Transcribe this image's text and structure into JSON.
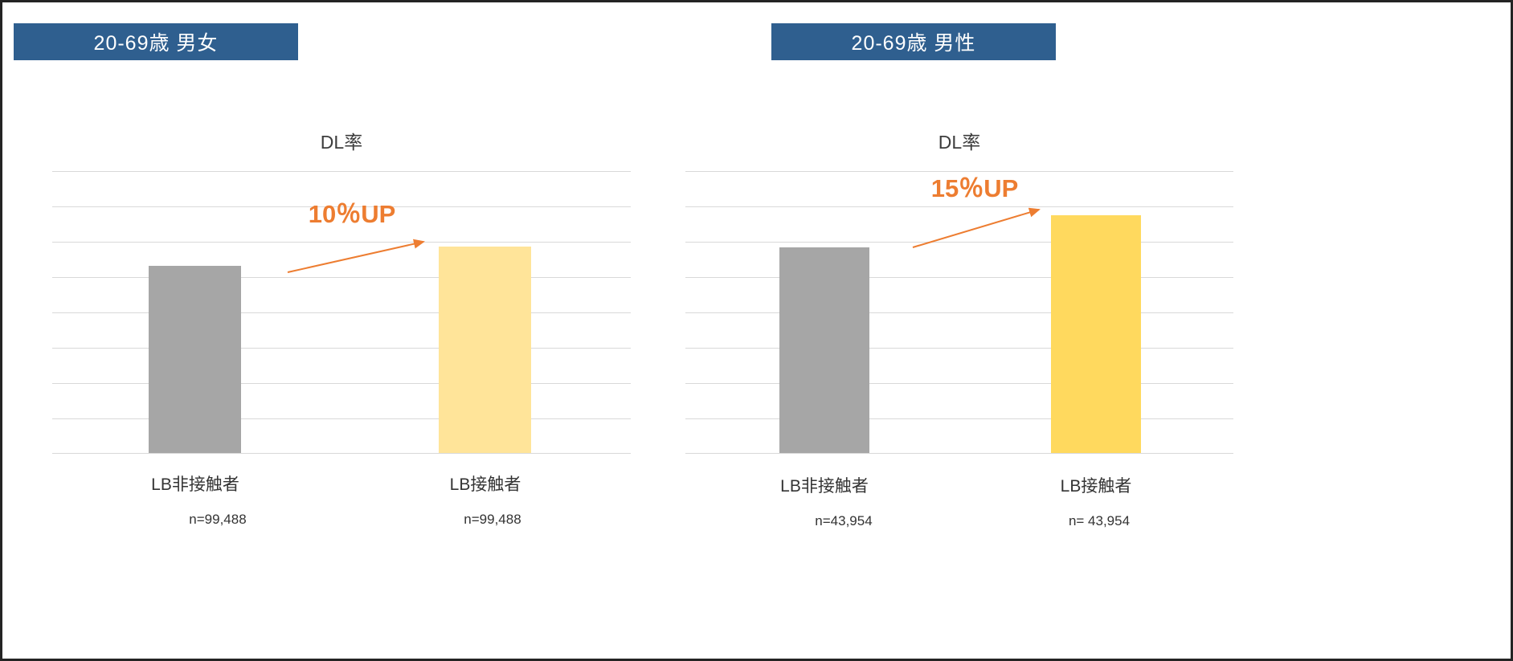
{
  "window": {
    "background": "#FFFFFF",
    "border_color": "#242424"
  },
  "colors": {
    "header_bg": "#2F5F8F",
    "header_text": "#FFFFFF",
    "bar_gray": "#A6A6A6",
    "bar_yellow_light": "#FFE499",
    "bar_yellow_gold": "#FFD95E",
    "annotation_orange": "#ED7D31",
    "gridline": "#D9D9D9",
    "text": "#333333"
  },
  "chart_data": [
    {
      "type": "bar",
      "segment_header": "20-69歳 男女",
      "title": "DL率",
      "categories": [
        "LB非接触者",
        "LB接触者"
      ],
      "values": [
        66.5,
        73.1
      ],
      "value_note": "y-axis has no tick labels; values are estimated bar heights in % of plot-area height; LB接触者 bar is +10% vs LB非接触者",
      "annotation": "10％UP",
      "n_labels": [
        "n=99,488",
        "n=99,488"
      ],
      "bar_colors": [
        "#A6A6A6",
        "#FFE499"
      ],
      "ylim": [
        0,
        100
      ],
      "gridlines": 9,
      "grid": true,
      "legend": false
    },
    {
      "type": "bar",
      "segment_header": "20-69歳 男性",
      "title": "DL率",
      "categories": [
        "LB非接触者",
        "LB接触者"
      ],
      "values": [
        73.0,
        84.4
      ],
      "value_note": "y-axis has no tick labels; values are estimated bar heights in % of plot-area height; LB接触者 bar is +15% vs LB非接触者",
      "annotation": "15％UP",
      "n_labels": [
        "n=43,954",
        "n= 43,954"
      ],
      "bar_colors": [
        "#A6A6A6",
        "#FFD95E"
      ],
      "ylim": [
        0,
        100
      ],
      "gridlines": 9,
      "grid": true,
      "legend": false
    }
  ]
}
